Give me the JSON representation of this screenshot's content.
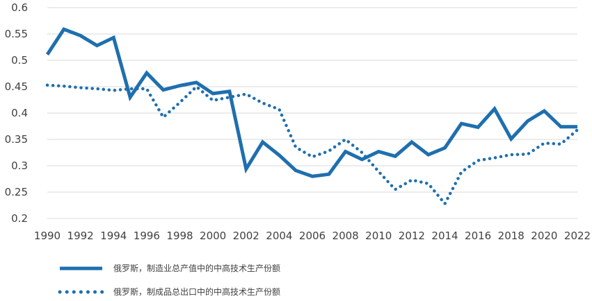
{
  "chart_data": {
    "type": "line",
    "title": "",
    "xlabel": "",
    "ylabel": "",
    "x": [
      1990,
      1991,
      1992,
      1993,
      1994,
      1995,
      1996,
      1997,
      1998,
      1999,
      2000,
      2001,
      2002,
      2003,
      2004,
      2005,
      2006,
      2007,
      2008,
      2009,
      2010,
      2011,
      2012,
      2013,
      2014,
      2015,
      2016,
      2017,
      2018,
      2019,
      2020,
      2021,
      2022
    ],
    "xticks": [
      "1990",
      "1992",
      "1994",
      "1996",
      "1998",
      "2000",
      "2002",
      "2004",
      "2006",
      "2008",
      "2010",
      "2012",
      "2014",
      "2016",
      "2018",
      "2020",
      "2022"
    ],
    "yticks": [
      "0.6",
      "0.55",
      "0.5",
      "0.45",
      "0.4",
      "0.35",
      "0.3",
      "0.25",
      "0.2"
    ],
    "ylim": [
      0.2,
      0.6
    ],
    "grid": true,
    "legend_position": "bottom-left",
    "series": [
      {
        "name": "俄罗斯，制造业总产值中的中高技术生产份额",
        "style": "solid",
        "color": "#1F6FAE",
        "values": [
          0.511,
          0.559,
          0.547,
          0.528,
          0.543,
          0.43,
          0.476,
          0.444,
          0.452,
          0.458,
          0.437,
          0.441,
          0.294,
          0.345,
          0.32,
          0.291,
          0.28,
          0.284,
          0.327,
          0.312,
          0.327,
          0.318,
          0.345,
          0.321,
          0.334,
          0.38,
          0.373,
          0.408,
          0.351,
          0.385,
          0.404,
          0.374,
          0.374
        ]
      },
      {
        "name": "俄罗斯，制成品总出口中的中高技术生产份额",
        "style": "dotted",
        "color": "#1F6FAE",
        "values": [
          0.453,
          0.451,
          0.448,
          0.446,
          0.443,
          0.446,
          0.446,
          0.392,
          0.42,
          0.45,
          0.424,
          0.43,
          0.436,
          0.419,
          0.407,
          0.335,
          0.317,
          0.328,
          0.35,
          0.325,
          0.289,
          0.255,
          0.273,
          0.266,
          0.228,
          0.288,
          0.31,
          0.315,
          0.321,
          0.322,
          0.343,
          0.341,
          0.368
        ]
      }
    ]
  }
}
